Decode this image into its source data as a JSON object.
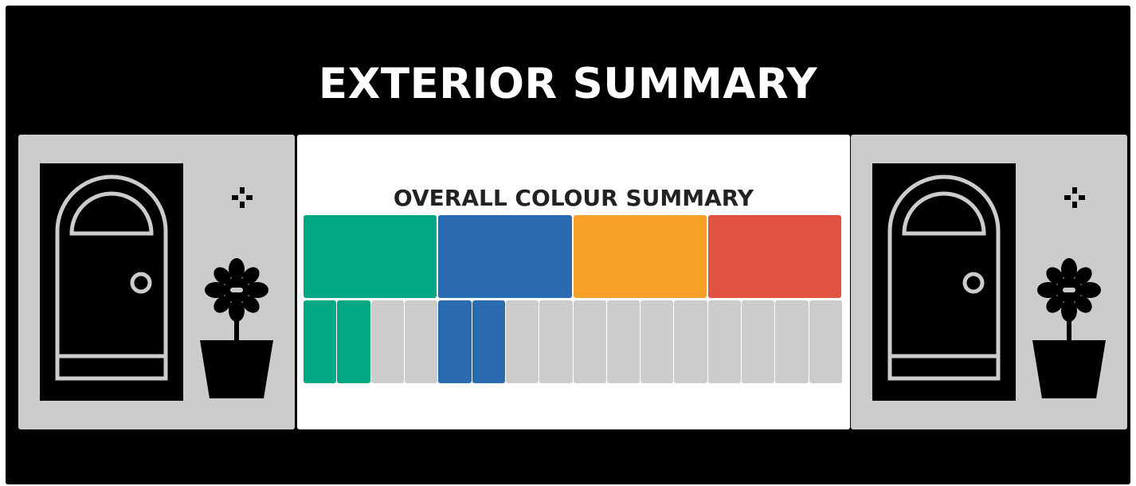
{
  "header": {
    "title": "EXTERIOR SUMMARY"
  },
  "summary": {
    "title": "OVERALL COLOUR SUMMARY",
    "categories": [
      {
        "color": "#02a884"
      },
      {
        "color": "#2a6ab0"
      },
      {
        "color": "#f7a029"
      },
      {
        "color": "#e05342"
      }
    ],
    "segments_per_category": 4,
    "filled_counts": [
      2,
      2,
      0,
      0
    ],
    "empty_color": "#cccccc"
  },
  "icons": {
    "left": [
      "door-icon",
      "sparkle-icon",
      "plant-icon"
    ],
    "right": [
      "door-icon",
      "sparkle-icon",
      "plant-icon"
    ]
  }
}
